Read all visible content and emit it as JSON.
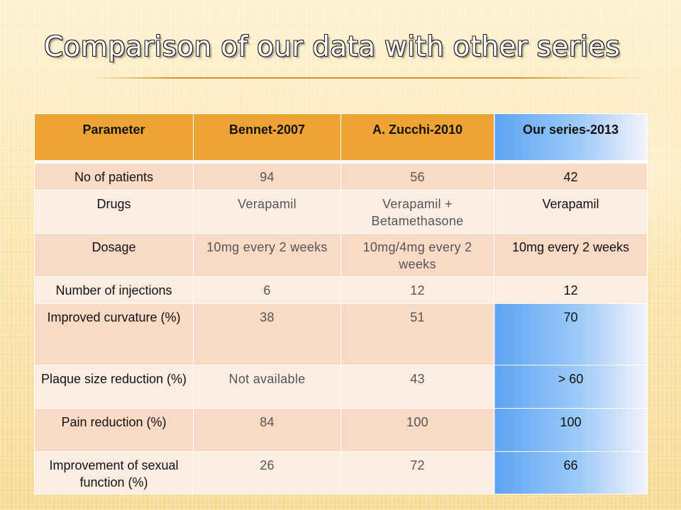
{
  "title": "Comparison of our data with other series",
  "table": {
    "headers": [
      "Parameter",
      "Bennet-2007",
      "A. Zucchi-2010",
      "Our series-2013"
    ],
    "rows": [
      {
        "parameter": "No  of patients",
        "bennet": "94",
        "zucchi": "56",
        "ours": "42"
      },
      {
        "parameter": "Drugs",
        "bennet": "Verapamil",
        "zucchi": "Verapamil + Betamethasone",
        "ours": "Verapamil"
      },
      {
        "parameter": "Dosage",
        "bennet": "10mg every 2 weeks",
        "zucchi": "10mg/4mg every 2 weeks",
        "ours": "10mg every 2 weeks"
      },
      {
        "parameter": "Number of injections",
        "bennet": "6",
        "zucchi": "12",
        "ours": "12"
      },
      {
        "parameter": "Improved curvature (%)",
        "bennet": "38",
        "zucchi": "51",
        "ours": "70"
      },
      {
        "parameter": "Plaque size reduction (%)",
        "bennet": "Not available",
        "zucchi": "43",
        "ours": "> 60"
      },
      {
        "parameter": "Pain reduction (%)",
        "bennet": "84",
        "zucchi": "100",
        "ours": "100"
      },
      {
        "parameter": "Improvement of sexual function (%)",
        "bennet": "26",
        "zucchi": "72",
        "ours": "66"
      }
    ]
  },
  "colors": {
    "header_orange": "#eea433",
    "row_dark": "#f8dac5",
    "row_light": "#fcede3",
    "highlight_blue": "#5ea4f3"
  }
}
